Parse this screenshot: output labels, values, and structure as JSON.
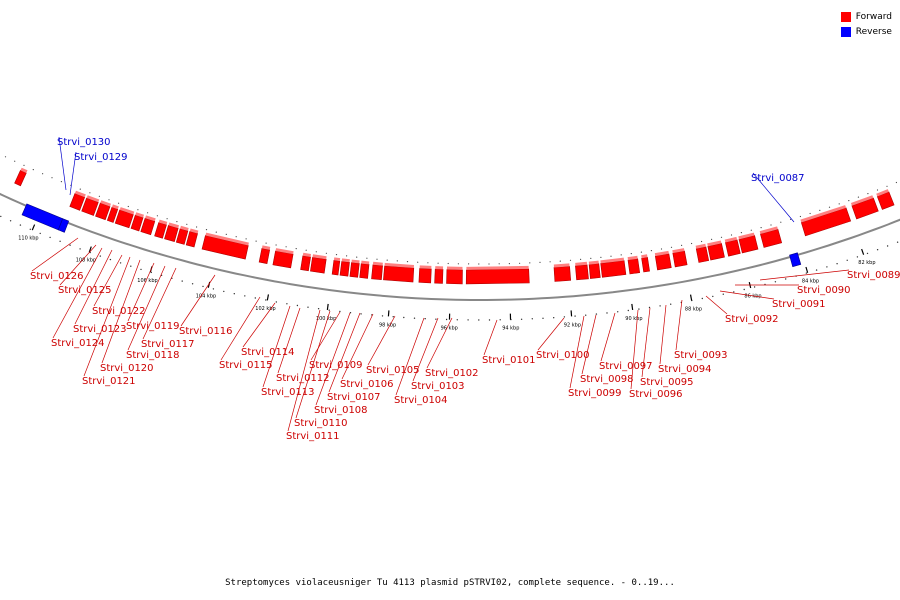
{
  "legend": {
    "items": [
      {
        "label": "Forward",
        "color": "#ff0000"
      },
      {
        "label": "Reverse",
        "color": "#0000ff"
      }
    ]
  },
  "caption": "Streptomyces violaceusniger Tu 4113 plasmid pSTRVI02, complete sequence. - 0..19...",
  "colors": {
    "forward": "#ff0000",
    "forward_dark": "#b00000",
    "reverse": "#0000ff",
    "backbone": "#888888"
  },
  "ticks": [
    "110 kbp",
    "108 kbp",
    "106 kbp",
    "104 kbp",
    "102 kbp",
    "100 kbp",
    "98 kbp",
    "96 kbp",
    "94 kbp",
    "92 kbp",
    "90 kbp",
    "88 kbp",
    "86 kbp",
    "84 kbp",
    "82 kbp"
  ],
  "genes": {
    "reverse": [
      "Strvi_0130",
      "Strvi_0129",
      "Strvi_0087"
    ],
    "forward": [
      "Strvi_0126",
      "Strvi_0125",
      "Strvi_0122",
      "Strvi_0123",
      "Strvi_0124",
      "Strvi_0119",
      "Strvi_0120",
      "Strvi_0121",
      "Strvi_0117",
      "Strvi_0118",
      "Strvi_0116",
      "Strvi_0114",
      "Strvi_0115",
      "Strvi_0112",
      "Strvi_0113",
      "Strvi_0109",
      "Strvi_0110",
      "Strvi_0111",
      "Strvi_0108",
      "Strvi_0107",
      "Strvi_0106",
      "Strvi_0105",
      "Strvi_0104",
      "Strvi_0103",
      "Strvi_0102",
      "Strvi_0101",
      "Strvi_0100",
      "Strvi_0099",
      "Strvi_0098",
      "Strvi_0097",
      "Strvi_0096",
      "Strvi_0095",
      "Strvi_0094",
      "Strvi_0093",
      "Strvi_0092",
      "Strvi_0091",
      "Strvi_0090",
      "Strvi_0089"
    ]
  }
}
